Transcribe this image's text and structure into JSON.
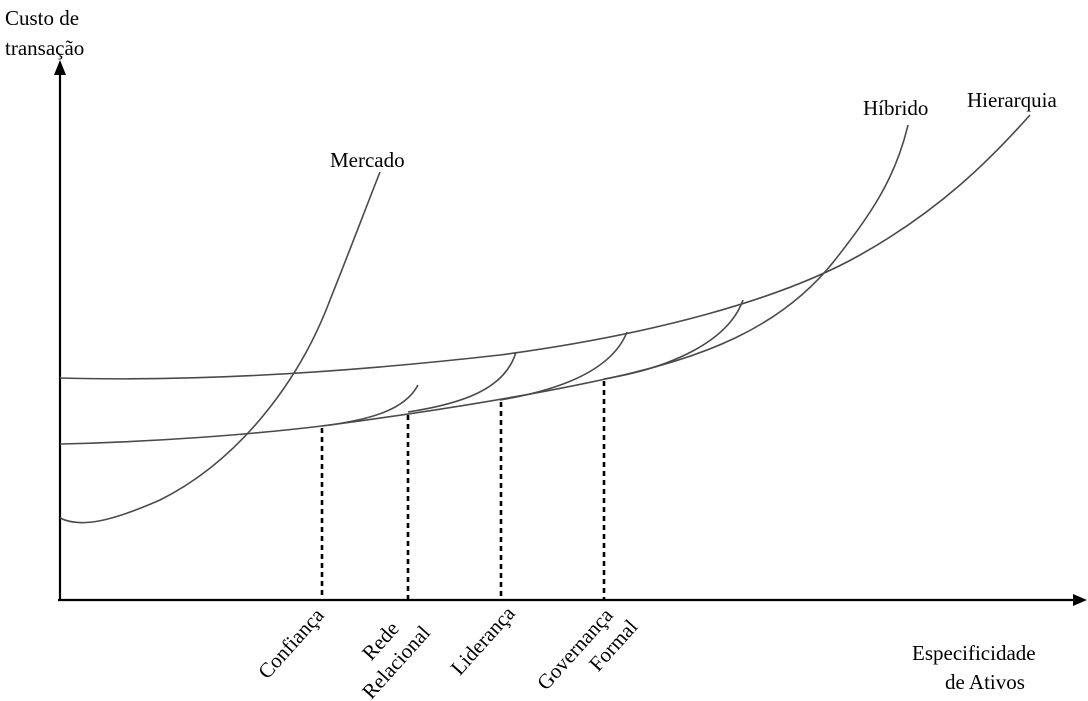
{
  "axes": {
    "y_label_line1": "Custo de",
    "y_label_line2": "transação",
    "x_label_line1": "Especificidade",
    "x_label_line2": "de Ativos"
  },
  "curves": {
    "mercado": "Mercado",
    "hibrido": "Híbrido",
    "hierarquia": "Hierarquia"
  },
  "mechanisms": {
    "confianca": "Confiança",
    "rede_line1": "Rede",
    "rede_line2": "Relacional",
    "lideranca": "Liderança",
    "governanca_line1": "Governança",
    "governanca_line2": "Formal"
  }
}
